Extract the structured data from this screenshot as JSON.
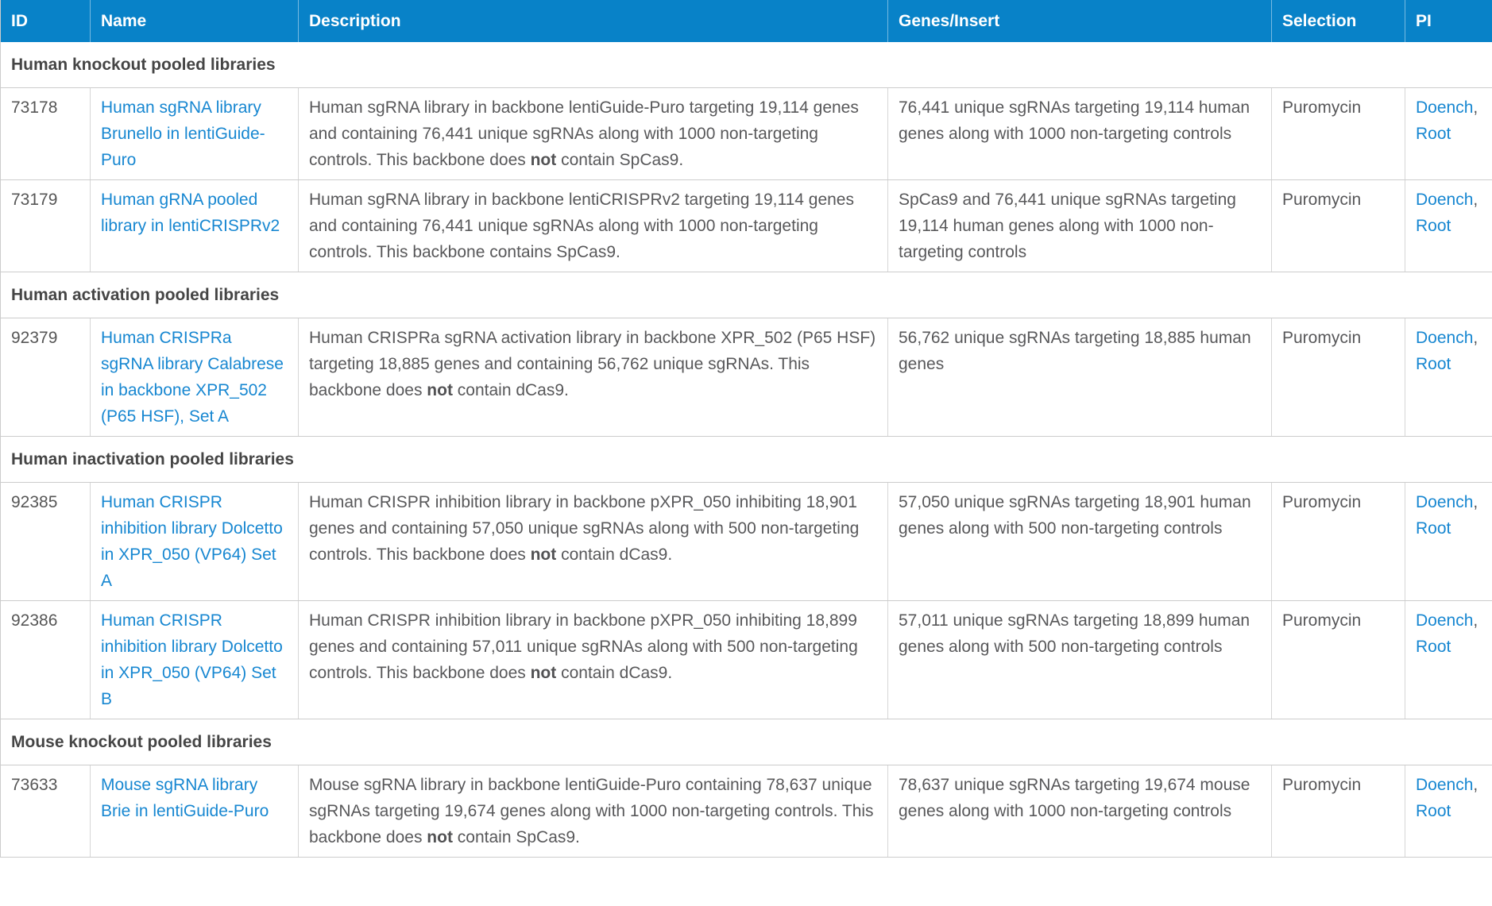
{
  "colors": {
    "header_background": "#0882c8",
    "header_text": "#ffffff",
    "link_blue": "#1787d1",
    "body_text": "#58585a",
    "section_heading_text": "#454545",
    "border": "#cccccc"
  },
  "table": {
    "columns": [
      {
        "label": "ID"
      },
      {
        "label": "Name"
      },
      {
        "label": "Description"
      },
      {
        "label": "Genes/Insert"
      },
      {
        "label": "Selection"
      },
      {
        "label": "PI"
      }
    ],
    "sections": [
      {
        "heading": "Human knockout pooled libraries",
        "rows": [
          {
            "id": "73178",
            "name": "Human sgRNA library Brunello in lentiGuide-Puro",
            "description": {
              "pre": "Human sgRNA library in backbone lentiGuide-Puro targeting 19,114 genes and containing 76,441 unique sgRNAs along with 1000 non-targeting controls. This backbone does ",
              "bold": "not",
              "post": " contain SpCas9."
            },
            "genes_insert": "76,441 unique sgRNAs targeting 19,114 human genes along with 1000 non-targeting controls",
            "selection": "Puromycin",
            "pi": {
              "link1": "Doench",
              "separator": ", ",
              "link2": "Root"
            }
          },
          {
            "id": "73179",
            "name": "Human gRNA pooled library in lentiCRISPRv2",
            "description": {
              "pre": "Human sgRNA library in backbone lentiCRISPRv2 targeting 19,114 genes and containing 76,441 unique sgRNAs along with 1000 non-targeting controls. This backbone contains SpCas9.",
              "bold": "",
              "post": ""
            },
            "genes_insert": "SpCas9 and 76,441 unique sgRNAs targeting 19,114 human genes along with 1000 non-targeting controls",
            "selection": "Puromycin",
            "pi": {
              "link1": "Doench",
              "separator": ", ",
              "link2": "Root"
            }
          }
        ]
      },
      {
        "heading": "Human activation pooled libraries",
        "rows": [
          {
            "id": "92379",
            "name": "Human CRISPRa sgRNA library Calabrese in backbone XPR_502 (P65 HSF), Set A",
            "description": {
              "pre": "Human CRISPRa sgRNA activation library in backbone XPR_502 (P65 HSF) targeting 18,885 genes and containing 56,762 unique sgRNAs. This backbone does ",
              "bold": "not",
              "post": " contain dCas9."
            },
            "genes_insert": "56,762 unique sgRNAs targeting 18,885 human genes",
            "selection": "Puromycin",
            "pi": {
              "link1": "Doench",
              "separator": ", ",
              "link2": "Root"
            }
          }
        ]
      },
      {
        "heading": "Human inactivation pooled libraries",
        "rows": [
          {
            "id": "92385",
            "name": "Human CRISPR inhibition library Dolcetto in XPR_050 (VP64) Set A",
            "description": {
              "pre": "Human CRISPR inhibition library in backbone pXPR_050 inhibiting 18,901 genes and containing 57,050 unique sgRNAs along with 500 non-targeting controls. This backbone does ",
              "bold": "not",
              "post": " contain dCas9."
            },
            "genes_insert": "57,050 unique sgRNAs targeting 18,901 human genes along with 500 non-targeting controls",
            "selection": "Puromycin",
            "pi": {
              "link1": "Doench",
              "separator": ", ",
              "link2": "Root"
            }
          },
          {
            "id": "92386",
            "name": "Human CRISPR inhibition library Dolcetto in XPR_050 (VP64) Set B",
            "description": {
              "pre": "Human CRISPR inhibition library in backbone pXPR_050 inhibiting 18,899 genes and containing 57,011 unique sgRNAs along with 500 non-targeting controls. This backbone does ",
              "bold": "not",
              "post": " contain dCas9."
            },
            "genes_insert": "57,011 unique sgRNAs targeting 18,899 human genes along with 500 non-targeting controls",
            "selection": "Puromycin",
            "pi": {
              "link1": "Doench",
              "separator": ", ",
              "link2": "Root"
            }
          }
        ]
      },
      {
        "heading": "Mouse knockout pooled libraries",
        "rows": [
          {
            "id": "73633",
            "name": "Mouse sgRNA library Brie in lentiGuide-Puro",
            "description": {
              "pre": "Mouse sgRNA library in backbone lentiGuide-Puro containing 78,637 unique sgRNAs targeting 19,674 genes along with 1000 non-targeting controls. This backbone does ",
              "bold": "not",
              "post": " contain SpCas9."
            },
            "genes_insert": "78,637 unique sgRNAs targeting 19,674 mouse genes along with 1000 non-targeting controls",
            "selection": "Puromycin",
            "pi": {
              "link1": "Doench",
              "separator": ", ",
              "link2": "Root"
            }
          }
        ]
      }
    ]
  }
}
